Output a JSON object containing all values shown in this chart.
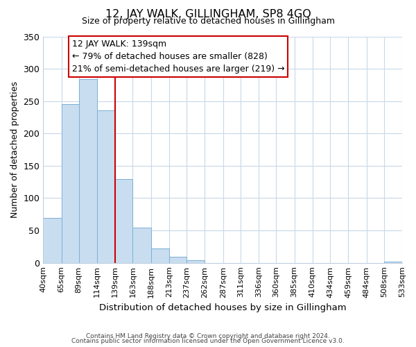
{
  "title": "12, JAY WALK, GILLINGHAM, SP8 4GQ",
  "subtitle": "Size of property relative to detached houses in Gillingham",
  "xlabel": "Distribution of detached houses by size in Gillingham",
  "ylabel": "Number of detached properties",
  "footer_line1": "Contains HM Land Registry data © Crown copyright and database right 2024.",
  "footer_line2": "Contains public sector information licensed under the Open Government Licence v3.0.",
  "bar_edges": [
    40,
    65,
    89,
    114,
    139,
    163,
    188,
    213,
    237,
    262,
    287,
    311,
    336,
    360,
    385,
    410,
    434,
    459,
    484,
    508,
    533
  ],
  "bar_heights": [
    69,
    245,
    284,
    236,
    130,
    54,
    22,
    9,
    4,
    0,
    0,
    0,
    0,
    0,
    0,
    0,
    0,
    0,
    0,
    2
  ],
  "bar_color": "#c9ddf0",
  "bar_edgecolor": "#7ab0d4",
  "reference_line_x": 139,
  "reference_line_color": "#cc0000",
  "annotation_line1": "12 JAY WALK: 139sqm",
  "annotation_line2": "← 79% of detached houses are smaller (828)",
  "annotation_line3": "21% of semi-detached houses are larger (219) →",
  "ylim": [
    0,
    350
  ],
  "yticks": [
    0,
    50,
    100,
    150,
    200,
    250,
    300,
    350
  ],
  "tick_labels": [
    "40sqm",
    "65sqm",
    "89sqm",
    "114sqm",
    "139sqm",
    "163sqm",
    "188sqm",
    "213sqm",
    "237sqm",
    "262sqm",
    "287sqm",
    "311sqm",
    "336sqm",
    "360sqm",
    "385sqm",
    "410sqm",
    "434sqm",
    "459sqm",
    "484sqm",
    "508sqm",
    "533sqm"
  ],
  "background_color": "#ffffff",
  "grid_color": "#c8d8e8"
}
